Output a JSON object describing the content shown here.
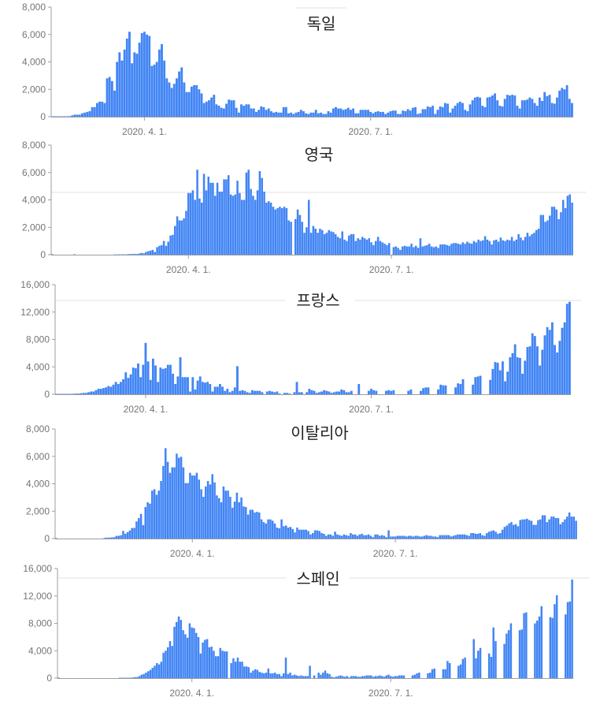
{
  "colors": {
    "bar": "#4285f4",
    "axis": "#9e9e9e",
    "tick_text": "#757575",
    "title": "#222222"
  },
  "chart_data": [
    {
      "type": "bar",
      "title": "독일",
      "start_date": "2020-02-24",
      "ylim": [
        0,
        8000
      ],
      "yticks": [
        {
          "v": 0,
          "label": "0"
        },
        {
          "v": 2000,
          "label": "2,000"
        },
        {
          "v": 4000,
          "label": "4,000"
        },
        {
          "v": 6000,
          "label": "6,000"
        },
        {
          "v": 8000,
          "label": "8,000"
        }
      ],
      "xticks": [
        {
          "date": "2020-04-01",
          "label": "2020. 4. 1."
        },
        {
          "date": "2020-07-01",
          "label": "2020. 7. 1."
        }
      ],
      "values": [
        30,
        30,
        30,
        30,
        30,
        30,
        30,
        40,
        100,
        150,
        150,
        150,
        250,
        300,
        350,
        400,
        700,
        700,
        1000,
        1100,
        1100,
        1000,
        2800,
        2900,
        2600,
        1900,
        4000,
        4700,
        4100,
        4900,
        5700,
        6200,
        3900,
        4700,
        4600,
        5400,
        6100,
        6200,
        6000,
        5900,
        3700,
        3800,
        4000,
        4900,
        5300,
        4100,
        2800,
        2500,
        2100,
        2400,
        2800,
        3300,
        3600,
        2500,
        1800,
        1800,
        2200,
        2300,
        2300,
        2000,
        1700,
        1000,
        1100,
        1200,
        1400,
        1600,
        900,
        800,
        650,
        600,
        950,
        1250,
        1200,
        1200,
        650,
        300,
        900,
        800,
        900,
        900,
        600,
        600,
        350,
        500,
        750,
        700,
        500,
        600,
        400,
        300,
        350,
        300,
        300,
        700,
        700,
        250,
        300,
        200,
        300,
        350,
        500,
        400,
        250,
        200,
        300,
        300,
        500,
        250,
        300,
        200,
        200,
        400,
        300,
        600,
        700,
        600,
        600,
        500,
        550,
        650,
        500,
        600,
        250,
        250,
        500,
        500,
        500,
        500,
        350,
        250,
        350,
        400,
        350,
        350,
        200,
        300,
        400,
        450,
        450,
        200,
        200,
        450,
        400,
        550,
        450,
        650,
        700,
        200,
        250,
        550,
        550,
        750,
        700,
        800,
        200,
        500,
        750,
        700,
        1000,
        950,
        300,
        600,
        800,
        1000,
        1100,
        1000,
        500,
        400,
        900,
        1200,
        1400,
        1450,
        1400,
        800,
        700,
        1400,
        1450,
        1550,
        1700,
        1200,
        800,
        750,
        1300,
        1600,
        1550,
        1600,
        1550,
        800,
        600,
        1200,
        1200,
        1250,
        1400,
        1300,
        1000,
        800,
        1400,
        1150,
        1800,
        1500,
        1600,
        1000,
        950,
        1400,
        1900,
        2100,
        2000,
        2300,
        1300,
        1000
      ]
    },
    {
      "type": "bar",
      "title": "영국",
      "start_date": "2020-01-31",
      "ylim": [
        0,
        8000
      ],
      "yticks": [
        {
          "v": 0,
          "label": "0"
        },
        {
          "v": 2000,
          "label": "2,000"
        },
        {
          "v": 4000,
          "label": "4,000"
        },
        {
          "v": 6000,
          "label": "6,000"
        },
        {
          "v": 8000,
          "label": "8,000"
        }
      ],
      "xticks": [
        {
          "date": "2020-04-01",
          "label": "2020. 4. 1."
        },
        {
          "date": "2020-07-01",
          "label": "2020. 7. 1."
        }
      ],
      "values": [
        40,
        0,
        0,
        0,
        0,
        0,
        0,
        0,
        0,
        0,
        30,
        0,
        0,
        0,
        0,
        0,
        0,
        0,
        0,
        0,
        0,
        0,
        0,
        0,
        0,
        0,
        0,
        0,
        20,
        20,
        20,
        20,
        30,
        20,
        40,
        50,
        50,
        60,
        50,
        80,
        130,
        100,
        200,
        250,
        300,
        350,
        200,
        550,
        650,
        700,
        1000,
        650,
        950,
        1400,
        1450,
        2100,
        2800,
        2500,
        2500,
        2650,
        3200,
        4500,
        4500,
        4700,
        4000,
        6200,
        4100,
        3800,
        5900,
        4700,
        5700,
        5250,
        5250,
        4300,
        5250,
        4600,
        4600,
        5500,
        5500,
        5800,
        4400,
        4300,
        4400,
        5400,
        4500,
        4000,
        4000,
        6000,
        6200,
        4800,
        4300,
        4000,
        4700,
        6100,
        5600,
        4600,
        3800,
        3900,
        3800,
        3500,
        3300,
        3400,
        3500,
        3400,
        3500,
        3400,
        2500,
        2400,
        0,
        2600,
        3300,
        2900,
        2400,
        1600,
        2000,
        4000,
        1600,
        2100,
        1900,
        1600,
        1900,
        1800,
        1500,
        1600,
        1800,
        1700,
        1650,
        1500,
        1300,
        1200,
        1700,
        1100,
        1000,
        1400,
        1500,
        1500,
        1000,
        1200,
        1100,
        1300,
        1200,
        1100,
        1200,
        900,
        700,
        1000,
        1300,
        1000,
        900,
        800,
        700,
        850,
        0,
        550,
        600,
        500,
        350,
        600,
        650,
        600,
        600,
        800,
        550,
        650,
        500,
        1200,
        600,
        650,
        700,
        800,
        600,
        550,
        600,
        500,
        750,
        750,
        750,
        700,
        650,
        800,
        850,
        850,
        800,
        750,
        900,
        800,
        950,
        850,
        800,
        1000,
        900,
        1100,
        1000,
        1050,
        1350,
        1100,
        1000,
        750,
        1050,
        1100,
        950,
        1250,
        1050,
        1000,
        1100,
        1050,
        1300,
        1000,
        1100,
        1500,
        1250,
        1050,
        1300,
        1600,
        1350,
        1500,
        1600,
        1800,
        1900,
        2900,
        2900,
        2400,
        2500,
        2850,
        3500,
        3500,
        3300,
        2600,
        3100,
        4000,
        3400,
        4300,
        4400,
        3800
      ]
    },
    {
      "type": "bar",
      "title": "프랑스",
      "start_date": "2020-02-25",
      "ylim": [
        0,
        16000
      ],
      "yticks": [
        {
          "v": 0,
          "label": "0"
        },
        {
          "v": 4000,
          "label": "4,000"
        },
        {
          "v": 8000,
          "label": "8,000"
        },
        {
          "v": 12000,
          "label": "12,000"
        },
        {
          "v": 16000,
          "label": "16,000"
        }
      ],
      "xticks": [
        {
          "date": "2020-04-01",
          "label": "2020. 4. 1."
        },
        {
          "date": "2020-07-01",
          "label": "2020. 7. 1."
        }
      ],
      "values": [
        60,
        60,
        60,
        60,
        60,
        60,
        60,
        80,
        100,
        100,
        150,
        200,
        200,
        300,
        400,
        400,
        600,
        800,
        800,
        900,
        1000,
        1200,
        1100,
        1400,
        1800,
        1500,
        1800,
        2200,
        3200,
        2400,
        2900,
        3900,
        3800,
        4500,
        2500,
        4300,
        7500,
        4800,
        2100,
        5200,
        4200,
        1800,
        3900,
        3700,
        3800,
        4300,
        4300,
        3000,
        1500,
        2600,
        5400,
        2500,
        2500,
        2500,
        400,
        2500,
        700,
        2000,
        2600,
        1800,
        1700,
        1800,
        1500,
        400,
        1100,
        1100,
        1500,
        1100,
        500,
        800,
        300,
        500,
        1000,
        4100,
        500,
        600,
        500,
        300,
        200,
        600,
        500,
        500,
        500,
        300,
        0,
        400,
        500,
        400,
        300,
        400,
        100,
        0,
        200,
        200,
        100,
        0,
        300,
        1800,
        300,
        300,
        0,
        300,
        800,
        600,
        500,
        200,
        300,
        400,
        600,
        500,
        400,
        200,
        300,
        400,
        400,
        700,
        600,
        300,
        300,
        500,
        0,
        0,
        1500,
        0,
        0,
        0,
        500,
        800,
        600,
        500,
        0,
        0,
        0,
        500,
        600,
        500,
        600,
        0,
        0,
        0,
        0,
        0,
        500,
        700,
        0,
        0,
        0,
        500,
        900,
        1000,
        1000,
        0,
        0,
        0,
        700,
        1400,
        1300,
        1300,
        0,
        0,
        0,
        1000,
        1600,
        1500,
        2200,
        0,
        0,
        0,
        1400,
        2500,
        2600,
        2700,
        0,
        0,
        0,
        2100,
        3700,
        4700,
        4600,
        3500,
        4800,
        1900,
        3300,
        5400,
        6000,
        7300,
        5400,
        5300,
        3000,
        4900,
        6900,
        7000,
        8900,
        8500,
        7000,
        4200,
        6500,
        8600,
        9800,
        9400,
        10500,
        7200,
        6100,
        7800,
        9700,
        10500,
        13200,
        13500
      ]
    },
    {
      "type": "bar",
      "title": "이탈리아",
      "start_date": "2020-01-31",
      "ylim": [
        0,
        8000
      ],
      "yticks": [
        {
          "v": 0,
          "label": "0"
        },
        {
          "v": 2000,
          "label": "2,000"
        },
        {
          "v": 4000,
          "label": "4,000"
        },
        {
          "v": 6000,
          "label": "6,000"
        },
        {
          "v": 8000,
          "label": "8,000"
        }
      ],
      "xticks": [
        {
          "date": "2020-04-01",
          "label": "2020. 4. 1."
        },
        {
          "date": "2020-07-01",
          "label": "2020. 7. 1."
        }
      ],
      "values": [
        40,
        0,
        0,
        0,
        0,
        0,
        0,
        0,
        0,
        0,
        0,
        0,
        0,
        0,
        0,
        0,
        0,
        0,
        0,
        0,
        0,
        15,
        60,
        70,
        70,
        90,
        100,
        200,
        200,
        240,
        560,
        350,
        470,
        590,
        770,
        780,
        1250,
        1490,
        1800,
        980,
        2300,
        2650,
        2550,
        3500,
        3600,
        3200,
        3500,
        4200,
        5300,
        6600,
        5600,
        4800,
        5200,
        5200,
        6200,
        5900,
        5970,
        5200,
        4050,
        4050,
        4800,
        4600,
        4600,
        4800,
        4300,
        3600,
        3050,
        3800,
        4200,
        3950,
        4700,
        4100,
        3150,
        2950,
        2650,
        3800,
        3500,
        3500,
        3050,
        2250,
        2700,
        3350,
        2650,
        3000,
        2350,
        2300,
        1750,
        2100,
        2100,
        1900,
        1950,
        1900,
        1400,
        1200,
        1100,
        1400,
        1400,
        1300,
        1100,
        800,
        750,
        1400,
        900,
        950,
        800,
        850,
        700,
        450,
        800,
        650,
        650,
        650,
        650,
        550,
        300,
        400,
        600,
        600,
        550,
        400,
        350,
        200,
        300,
        300,
        200,
        500,
        300,
        250,
        200,
        300,
        250,
        200,
        400,
        300,
        300,
        200,
        300,
        350,
        250,
        250,
        300,
        200,
        100,
        300,
        300,
        200,
        250,
        200,
        100,
        600,
        150,
        150,
        150,
        200,
        200,
        200,
        200,
        150,
        200,
        200,
        150,
        200,
        200,
        150,
        150,
        200,
        250,
        200,
        200,
        150,
        150,
        100,
        250,
        250,
        250,
        250,
        250,
        150,
        200,
        250,
        300,
        300,
        300,
        300,
        250,
        200,
        400,
        400,
        350,
        350,
        400,
        250,
        200,
        400,
        500,
        550,
        600,
        500,
        350,
        400,
        650,
        850,
        950,
        1100,
        1200,
        1000,
        1050,
        900,
        1350,
        1400,
        1400,
        1450,
        1350,
        1300,
        1000,
        1000,
        1350,
        1400,
        1700,
        1700,
        1200,
        1400,
        1600,
        1600,
        1500,
        1500,
        1050,
        1200,
        1400,
        1600,
        1900,
        1600,
        1600,
        1300
      ]
    },
    {
      "type": "bar",
      "title": "스페인",
      "start_date": "2020-01-31",
      "ylim": [
        0,
        16000
      ],
      "yticks": [
        {
          "v": 0,
          "label": "0"
        },
        {
          "v": 4000,
          "label": "4,000"
        },
        {
          "v": 8000,
          "label": "8,000"
        },
        {
          "v": 12000,
          "label": "12,000"
        },
        {
          "v": 16000,
          "label": "16,000"
        }
      ],
      "xticks": [
        {
          "date": "2020-04-01",
          "label": "2020. 4. 1."
        },
        {
          "date": "2020-07-01",
          "label": "2020. 7. 1."
        }
      ],
      "values": [
        80,
        0,
        0,
        0,
        0,
        0,
        0,
        0,
        0,
        0,
        0,
        0,
        0,
        0,
        0,
        0,
        0,
        0,
        0,
        0,
        0,
        0,
        0,
        0,
        0,
        0,
        0,
        0,
        60,
        60,
        60,
        60,
        60,
        60,
        100,
        150,
        150,
        300,
        500,
        600,
        800,
        1000,
        1200,
        1500,
        1800,
        2200,
        2000,
        2400,
        3700,
        4000,
        4500,
        5400,
        4700,
        7500,
        8200,
        9000,
        8500,
        7000,
        6400,
        5900,
        8000,
        7400,
        7300,
        6600,
        6000,
        3600,
        5200,
        5600,
        5700,
        4500,
        4600,
        4000,
        3200,
        3200,
        4400,
        4000,
        3900,
        3900,
        0,
        2200,
        2900,
        2400,
        3000,
        2400,
        2400,
        1700,
        1700,
        1600,
        800,
        1100,
        1300,
        1200,
        900,
        800,
        700,
        800,
        1400,
        700,
        700,
        800,
        600,
        600,
        300,
        700,
        3000,
        600,
        800,
        400,
        500,
        400,
        300,
        400,
        300,
        300,
        300,
        1800,
        0,
        400,
        0,
        800,
        500,
        800,
        1100,
        700,
        600,
        200,
        100,
        200,
        300,
        400,
        300,
        200,
        300,
        100,
        300,
        300,
        300,
        200,
        200,
        300,
        300,
        400,
        400,
        400,
        200,
        300,
        300,
        400,
        300,
        200,
        400,
        500,
        300,
        200,
        300,
        300,
        400,
        400,
        400,
        0,
        0,
        0,
        400,
        500,
        700,
        800,
        0,
        0,
        0,
        700,
        800,
        1300,
        1400,
        0,
        0,
        0,
        1300,
        1300,
        2500,
        2200,
        0,
        0,
        0,
        1800,
        2000,
        2800,
        3000,
        0,
        0,
        0,
        5700,
        2900,
        4000,
        4400,
        0,
        0,
        0,
        3600,
        3100,
        7400,
        5400,
        0,
        0,
        0,
        5000,
        6500,
        7000,
        8000,
        0,
        0,
        0,
        7000,
        7100,
        9500,
        9600,
        0,
        0,
        0,
        8000,
        8400,
        9000,
        10500,
        0,
        0,
        0,
        8900,
        8800,
        10800,
        12100,
        0,
        0,
        0,
        9300,
        11100,
        11200,
        14400
      ]
    }
  ]
}
